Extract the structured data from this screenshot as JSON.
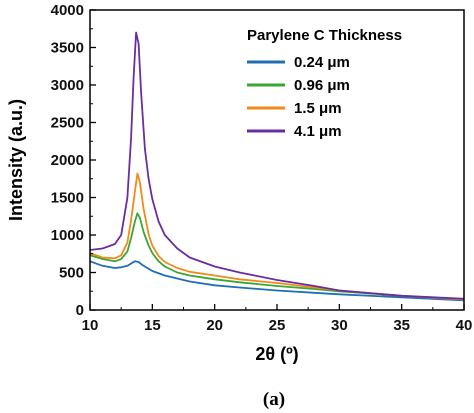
{
  "chart_data": {
    "type": "line",
    "xlabel": "2θ (º)",
    "ylabel": "Intensity (a.u.)",
    "xlim": [
      10,
      40
    ],
    "ylim": [
      0,
      4000
    ],
    "x_ticks": [
      10,
      15,
      20,
      25,
      30,
      35,
      40
    ],
    "y_ticks": [
      0,
      500,
      1000,
      1500,
      2000,
      2500,
      3000,
      3500,
      4000
    ],
    "grid": false,
    "legend_title": "Parylene C Thickness",
    "legend_position": "top-right",
    "panel_label": "(a)",
    "series": [
      {
        "name": "0.24 μm",
        "color": "#1f6fb4",
        "x": [
          10,
          11,
          12,
          12.5,
          13,
          13.3,
          13.6,
          13.9,
          14.2,
          14.6,
          15,
          16,
          17,
          18,
          20,
          22,
          25,
          28,
          30,
          35,
          40
        ],
        "y": [
          650,
          590,
          560,
          570,
          590,
          620,
          650,
          640,
          600,
          560,
          520,
          460,
          420,
          380,
          330,
          300,
          260,
          230,
          210,
          170,
          130
        ]
      },
      {
        "name": "0.96 μm",
        "color": "#3aa635",
        "x": [
          10,
          11,
          12,
          12.5,
          13,
          13.3,
          13.6,
          13.8,
          14.0,
          14.3,
          14.7,
          15,
          15.5,
          16,
          17,
          18,
          20,
          22,
          25,
          28,
          30,
          35,
          40
        ],
        "y": [
          730,
          680,
          650,
          680,
          780,
          960,
          1180,
          1290,
          1230,
          1040,
          860,
          760,
          650,
          580,
          500,
          460,
          410,
          370,
          320,
          280,
          250,
          190,
          140
        ]
      },
      {
        "name": "1.5 μm",
        "color": "#f28a1b",
        "x": [
          10,
          11,
          12,
          12.5,
          13,
          13.3,
          13.6,
          13.8,
          14.0,
          14.3,
          14.7,
          15,
          15.5,
          16,
          17,
          18,
          20,
          22,
          25,
          28,
          30,
          35,
          40
        ],
        "y": [
          760,
          700,
          690,
          730,
          900,
          1200,
          1580,
          1820,
          1700,
          1350,
          1010,
          860,
          720,
          640,
          560,
          510,
          460,
          410,
          360,
          300,
          260,
          190,
          140
        ]
      },
      {
        "name": "4.1 μm",
        "color": "#6a2da0",
        "x": [
          10,
          11,
          12,
          12.5,
          13,
          13.3,
          13.5,
          13.7,
          13.9,
          14.1,
          14.4,
          14.7,
          15,
          15.5,
          16,
          17,
          18,
          20,
          22,
          25,
          28,
          30,
          35,
          40
        ],
        "y": [
          800,
          820,
          880,
          1000,
          1500,
          2300,
          3100,
          3700,
          3550,
          2900,
          2150,
          1750,
          1480,
          1180,
          1000,
          820,
          700,
          580,
          500,
          400,
          320,
          260,
          190,
          150
        ]
      }
    ]
  }
}
